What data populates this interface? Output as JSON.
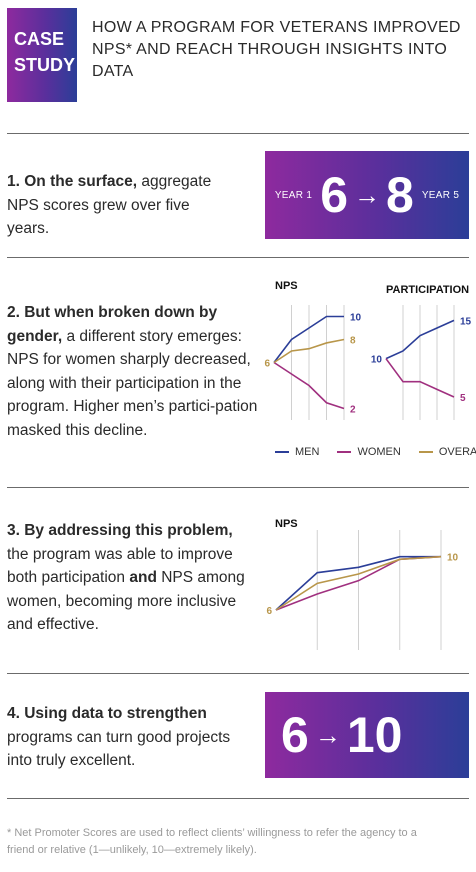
{
  "header": {
    "badge_line1": "CASE",
    "badge_line2": "STUDY",
    "title": "HOW A PROGRAM FOR VETERANS IMPROVED NPS* AND REACH THROUGH INSIGHTS INTO DATA"
  },
  "section1": {
    "bold": "1. On the surface,",
    "text": " aggregate NPS scores grew over five years.",
    "year1_label": "YEAR 1",
    "year5_label": "YEAR 5",
    "from_value": "6",
    "arrow": "→",
    "to_value": "8"
  },
  "section2": {
    "bold": "2. But when broken down by gender,",
    "text": " a different story emerges: NPS for women sharply decreased, along with their participation in the program. Higher men’s partici-pation masked this decline."
  },
  "section3": {
    "bold1": "3. By addressing this problem,",
    "text1": " the program was able to improve both participation ",
    "bold2": "and",
    "text2": " NPS among women, becoming more inclusive and effective."
  },
  "section4": {
    "bold": "4. Using data to strengthen",
    "text": " programs can turn good projects into truly excellent.",
    "from_value": "6",
    "arrow": "→",
    "to_value": "10",
    "icon": "stars-rating-click-icon"
  },
  "footnote": "* Net Promoter Scores are used to reflect clients’ willingness to refer the agency to a friend or relative (1—unlikely, 10—extremely likely).",
  "legend": [
    {
      "label": "MEN",
      "color": "#2b3e98"
    },
    {
      "label": "WOMEN",
      "color": "#a0307f"
    },
    {
      "label": "OVERALL",
      "color": "#b8964a"
    }
  ],
  "colors": {
    "men": "#2b3e98",
    "women": "#a0307f",
    "overall": "#b8964a"
  },
  "chart_data": [
    {
      "type": "line",
      "title": "NPS",
      "x": [
        1,
        2,
        3,
        4,
        5
      ],
      "series": [
        {
          "name": "MEN",
          "values": [
            6,
            8,
            9,
            10,
            10
          ],
          "end_label": "10"
        },
        {
          "name": "WOMEN",
          "values": [
            6,
            5,
            4,
            2.5,
            2
          ],
          "end_label": "2"
        },
        {
          "name": "OVERALL",
          "values": [
            6,
            7,
            7.2,
            7.7,
            8
          ],
          "end_label": "8"
        }
      ],
      "start_label": "6",
      "ylim": [
        1,
        11
      ]
    },
    {
      "type": "line",
      "title": "PARTICIPATION",
      "x": [
        1,
        2,
        3,
        4,
        5
      ],
      "series": [
        {
          "name": "MEN",
          "values": [
            10,
            11,
            13,
            14,
            15
          ],
          "end_label": "15"
        },
        {
          "name": "WOMEN",
          "values": [
            10,
            7,
            7,
            6,
            5
          ],
          "end_label": "5"
        }
      ],
      "start_label": "10",
      "ylim": [
        2,
        17
      ]
    },
    {
      "type": "line",
      "title": "NPS",
      "x": [
        1,
        2,
        3,
        4,
        5
      ],
      "series": [
        {
          "name": "MEN",
          "values": [
            6,
            8.8,
            9.2,
            10,
            10
          ]
        },
        {
          "name": "WOMEN",
          "values": [
            6,
            7.2,
            8.2,
            9.8,
            10
          ]
        },
        {
          "name": "OVERALL",
          "values": [
            6,
            8,
            8.7,
            9.8,
            10
          ]
        }
      ],
      "start_label": "6",
      "end_label": "10",
      "ylim": [
        3,
        12
      ]
    }
  ]
}
